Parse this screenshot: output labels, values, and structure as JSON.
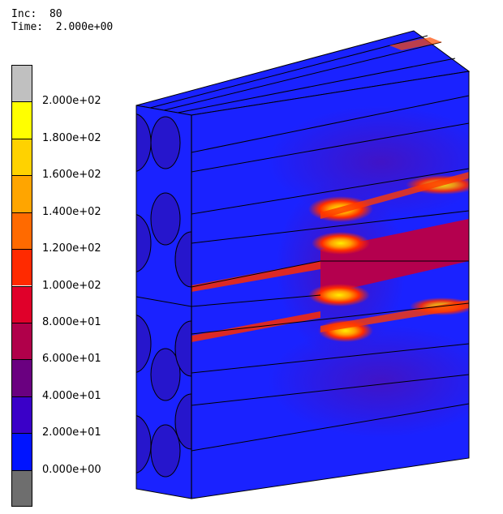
{
  "header": {
    "increment_label": "Inc:  80",
    "time_label": "Time:  2.000e+00"
  },
  "legend": {
    "colors": [
      "#c0c0c0",
      "#ffff00",
      "#ffd200",
      "#ffa500",
      "#ff6a00",
      "#ff2a00",
      "#e0002a",
      "#b0004a",
      "#6a0080",
      "#3a00c8",
      "#0014ff",
      "#6e6e6e"
    ],
    "tick_labels": [
      "2.000e+02",
      "1.800e+02",
      "1.600e+02",
      "1.400e+02",
      "1.200e+02",
      "1.000e+02",
      "8.000e+01",
      "6.000e+01",
      "4.000e+01",
      "2.000e+01",
      "0.000e+00"
    ]
  },
  "model": {
    "base_color": "#1a22ff",
    "cut_color": "#b4004e",
    "hot_color": "#ff3a00",
    "peak_color": "#ffee00"
  }
}
